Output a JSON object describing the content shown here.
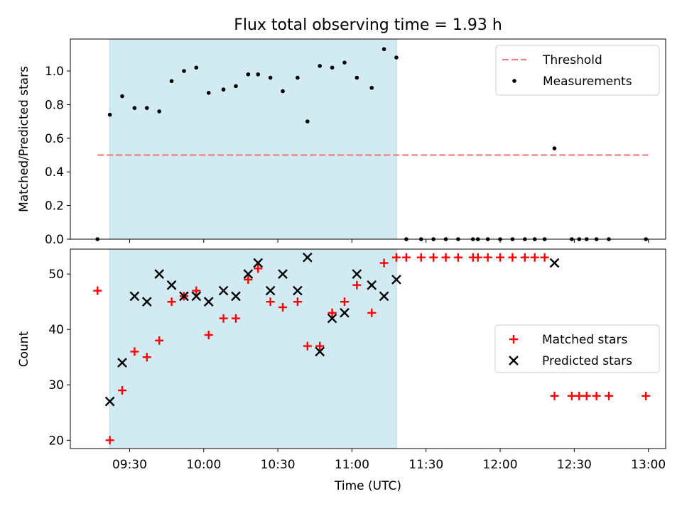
{
  "figure": {
    "title": "Flux total observing time = 1.93 h"
  },
  "chart_data": [
    {
      "type": "scatter",
      "ylabel": "Matched/Predicted stars",
      "xlabel": "",
      "x_unit": "minutes-of-day clock time (UTC)",
      "xlim": [
        "09:06",
        "13:07"
      ],
      "ylim": [
        0,
        1.19
      ],
      "yticks": [
        0.0,
        0.2,
        0.4,
        0.6,
        0.8,
        1.0
      ],
      "ytick_labels": [
        "0.0",
        "0.2",
        "0.4",
        "0.6",
        "0.8",
        "1.0"
      ],
      "observing_window": {
        "start": "09:22",
        "end": "11:18",
        "color": "#add8e6"
      },
      "legend": {
        "placement": "upper right",
        "entries": [
          "Threshold",
          "Measurements"
        ]
      },
      "series": [
        {
          "name": "Threshold",
          "style": "dashed-line",
          "color": "#f08080",
          "x": [
            "09:17",
            "13:00"
          ],
          "y": [
            0.5,
            0.5
          ]
        },
        {
          "name": "Measurements",
          "style": "dot",
          "color": "#000000",
          "x": [
            "09:17",
            "09:22",
            "09:27",
            "09:32",
            "09:37",
            "09:42",
            "09:47",
            "09:52",
            "09:57",
            "10:02",
            "10:08",
            "10:13",
            "10:18",
            "10:22",
            "10:27",
            "10:32",
            "10:38",
            "10:42",
            "10:47",
            "10:52",
            "10:57",
            "11:02",
            "11:08",
            "11:13",
            "11:18",
            "11:22",
            "11:28",
            "11:33",
            "11:38",
            "11:43",
            "11:49",
            "11:51",
            "11:55",
            "12:00",
            "12:05",
            "12:10",
            "12:14",
            "12:18",
            "12:22",
            "12:29",
            "12:32",
            "12:35",
            "12:39",
            "12:44",
            "12:59"
          ],
          "y": [
            0.0,
            0.74,
            0.85,
            0.78,
            0.78,
            0.76,
            0.94,
            1.0,
            1.02,
            0.87,
            0.89,
            0.91,
            0.98,
            0.98,
            0.96,
            0.88,
            0.96,
            0.7,
            1.03,
            1.02,
            1.05,
            0.96,
            0.9,
            1.13,
            1.08,
            0.0,
            0.0,
            0.0,
            0.0,
            0.0,
            0.0,
            0.0,
            0.0,
            0.0,
            0.0,
            0.0,
            0.0,
            0.0,
            0.54,
            0.0,
            0.0,
            0.0,
            0.0,
            0.0,
            0.0
          ]
        }
      ]
    },
    {
      "type": "scatter",
      "ylabel": "Count",
      "xlabel": "Time (UTC)",
      "x_unit": "minutes-of-day clock time (UTC)",
      "xlim": [
        "09:06",
        "13:07"
      ],
      "ylim": [
        18.5,
        54.5
      ],
      "yticks": [
        20,
        30,
        40,
        50
      ],
      "ytick_labels": [
        "20",
        "30",
        "40",
        "50"
      ],
      "xticks": [
        "09:30",
        "10:00",
        "10:30",
        "11:00",
        "11:30",
        "12:00",
        "12:30",
        "13:00"
      ],
      "xtick_labels": [
        "09:30",
        "10:00",
        "10:30",
        "11:00",
        "11:30",
        "12:00",
        "12:30",
        "13:00"
      ],
      "observing_window": {
        "start": "09:22",
        "end": "11:18",
        "color": "#add8e6"
      },
      "legend": {
        "placement": "center right",
        "entries": [
          "Matched stars",
          "Predicted stars"
        ]
      },
      "series": [
        {
          "name": "Matched stars",
          "marker": "plus",
          "color": "#ff0000",
          "x": [
            "09:17",
            "09:22",
            "09:27",
            "09:32",
            "09:37",
            "09:42",
            "09:47",
            "09:52",
            "09:57",
            "10:02",
            "10:08",
            "10:13",
            "10:18",
            "10:22",
            "10:27",
            "10:32",
            "10:38",
            "10:42",
            "10:47",
            "10:52",
            "10:57",
            "11:02",
            "11:08",
            "11:13",
            "11:18",
            "11:22",
            "11:28",
            "11:33",
            "11:38",
            "11:43",
            "11:49",
            "11:51",
            "11:55",
            "12:00",
            "12:05",
            "12:10",
            "12:14",
            "12:18",
            "12:22",
            "12:29",
            "12:32",
            "12:35",
            "12:39",
            "12:44",
            "12:59"
          ],
          "y": [
            47,
            20,
            29,
            36,
            35,
            38,
            45,
            46,
            47,
            39,
            42,
            42,
            49,
            51,
            45,
            44,
            45,
            37,
            37,
            43,
            45,
            48,
            43,
            52,
            53,
            53,
            53,
            53,
            53,
            53,
            53,
            53,
            53,
            53,
            53,
            53,
            53,
            53,
            28,
            28,
            28,
            28,
            28,
            28,
            28
          ]
        },
        {
          "name": "Predicted stars",
          "marker": "x",
          "color": "#000000",
          "x": [
            "09:22",
            "09:27",
            "09:32",
            "09:37",
            "09:42",
            "09:47",
            "09:52",
            "09:57",
            "10:02",
            "10:08",
            "10:13",
            "10:18",
            "10:22",
            "10:27",
            "10:32",
            "10:38",
            "10:42",
            "10:47",
            "10:52",
            "10:57",
            "11:02",
            "11:08",
            "11:13",
            "11:18",
            "12:22"
          ],
          "y": [
            27,
            34,
            46,
            45,
            50,
            48,
            46,
            46,
            45,
            47,
            46,
            50,
            52,
            47,
            50,
            47,
            53,
            36,
            42,
            43,
            50,
            48,
            46,
            49,
            52
          ]
        }
      ]
    }
  ]
}
